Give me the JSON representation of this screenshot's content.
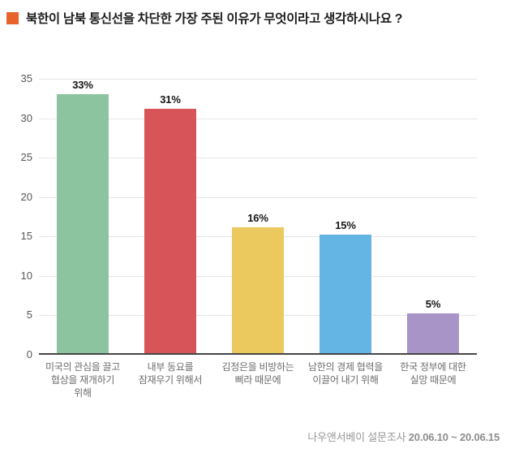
{
  "header": {
    "title": "북한이 남북 통신선을 차단한 가장 주된 이유가 무엇이라고 생각하시나요 ?",
    "bullet_color": "#e8632c"
  },
  "chart_data": {
    "type": "bar",
    "title": "북한이 남북 통신선을 차단한 가장 주된 이유가 무엇이라고 생각하시나요 ?",
    "categories": [
      "미국의 관심을 끌고\n협상을 재개하기\n위해",
      "내부 동요를\n잠재우기 위해서",
      "김정은을 비방하는\n삐라 때문에",
      "남한의 경제 협력을\n이끌어 내기 위해",
      "한국 정부에 대한\n실망 때문에"
    ],
    "values": [
      33,
      31,
      16,
      15,
      5
    ],
    "value_labels": [
      "33%",
      "31%",
      "16%",
      "15%",
      "5%"
    ],
    "bar_colors": [
      "#8cc4a0",
      "#d75459",
      "#ecc95f",
      "#64b5e3",
      "#a994c8"
    ],
    "xlabel": "",
    "ylabel": "",
    "ylim": [
      0,
      35
    ],
    "yticks": [
      0,
      5,
      10,
      15,
      20,
      25,
      30,
      35
    ],
    "grid": true,
    "legend": false
  },
  "footer": {
    "source": "나우앤서베이 설문조사",
    "period": "20.06.10 ~ 20.06.15"
  }
}
